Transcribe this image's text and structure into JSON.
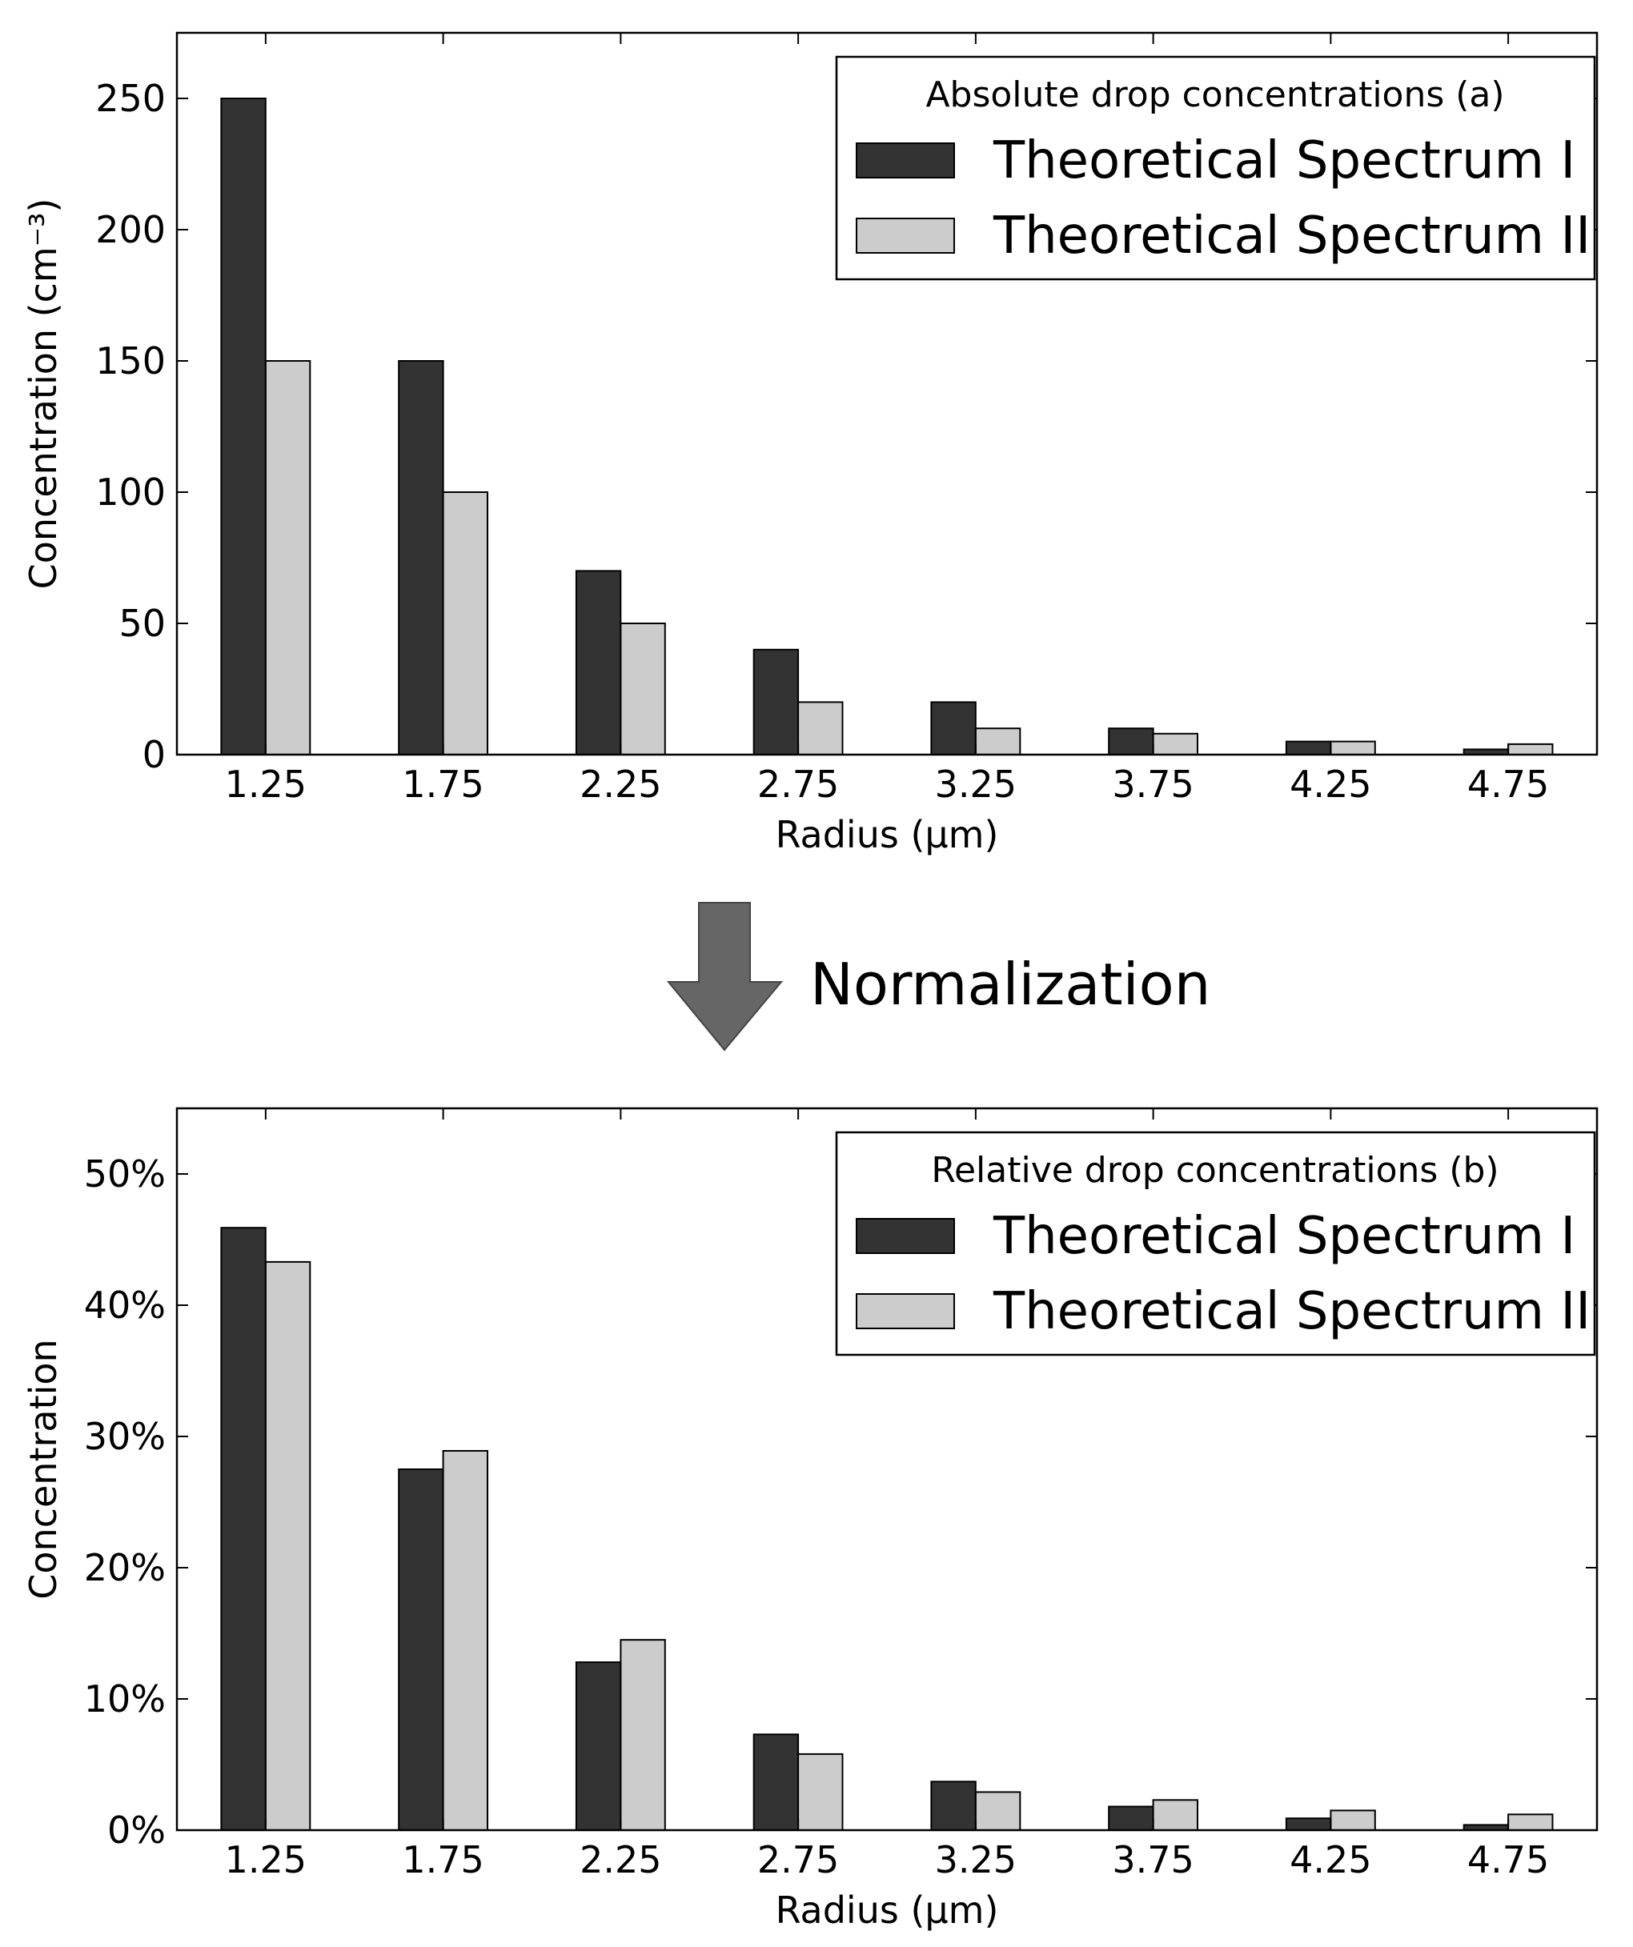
{
  "chart_data": [
    {
      "type": "bar",
      "categories": [
        "1.25",
        "1.75",
        "2.25",
        "2.75",
        "3.25",
        "3.75",
        "4.25",
        "4.75"
      ],
      "series": [
        {
          "name": "Theoretical Spectrum I",
          "color": "#333333",
          "values": [
            250,
            150,
            70,
            40,
            20,
            10,
            5,
            2
          ]
        },
        {
          "name": "Theoretical Spectrum II",
          "color": "#cccccc",
          "values": [
            150,
            100,
            50,
            20,
            10,
            8,
            5,
            4
          ]
        }
      ],
      "legend_title": "Absolute drop concentrations (a)",
      "legend_position": "top-right",
      "xlabel": "Radius (μm)",
      "ylabel": "Concentration (cm⁻³)",
      "ylim": [
        0,
        275
      ],
      "yticks": [
        0,
        50,
        100,
        150,
        200,
        250
      ],
      "ytick_labels": [
        "0",
        "50",
        "100",
        "150",
        "200",
        "250"
      ],
      "grid": false
    },
    {
      "type": "bar",
      "categories": [
        "1.25",
        "1.75",
        "2.25",
        "2.75",
        "3.25",
        "3.75",
        "4.25",
        "4.75"
      ],
      "series": [
        {
          "name": "Theoretical Spectrum I",
          "color": "#333333",
          "values": [
            45.9,
            27.5,
            12.8,
            7.3,
            3.7,
            1.8,
            0.9,
            0.4
          ]
        },
        {
          "name": "Theoretical Spectrum II",
          "color": "#cccccc",
          "values": [
            43.3,
            28.9,
            14.5,
            5.8,
            2.9,
            2.3,
            1.5,
            1.2
          ]
        }
      ],
      "legend_title": "Relative drop concentrations (b)",
      "legend_position": "top-right",
      "xlabel": "Radius (μm)",
      "ylabel": "Concentration",
      "ylim": [
        0,
        55
      ],
      "yticks": [
        0,
        10,
        20,
        30,
        40,
        50
      ],
      "ytick_labels": [
        "0%",
        "10%",
        "20%",
        "30%",
        "40%",
        "50%"
      ],
      "grid": false
    }
  ],
  "transition": {
    "label": "Normalization",
    "arrow_color": "#666666"
  }
}
